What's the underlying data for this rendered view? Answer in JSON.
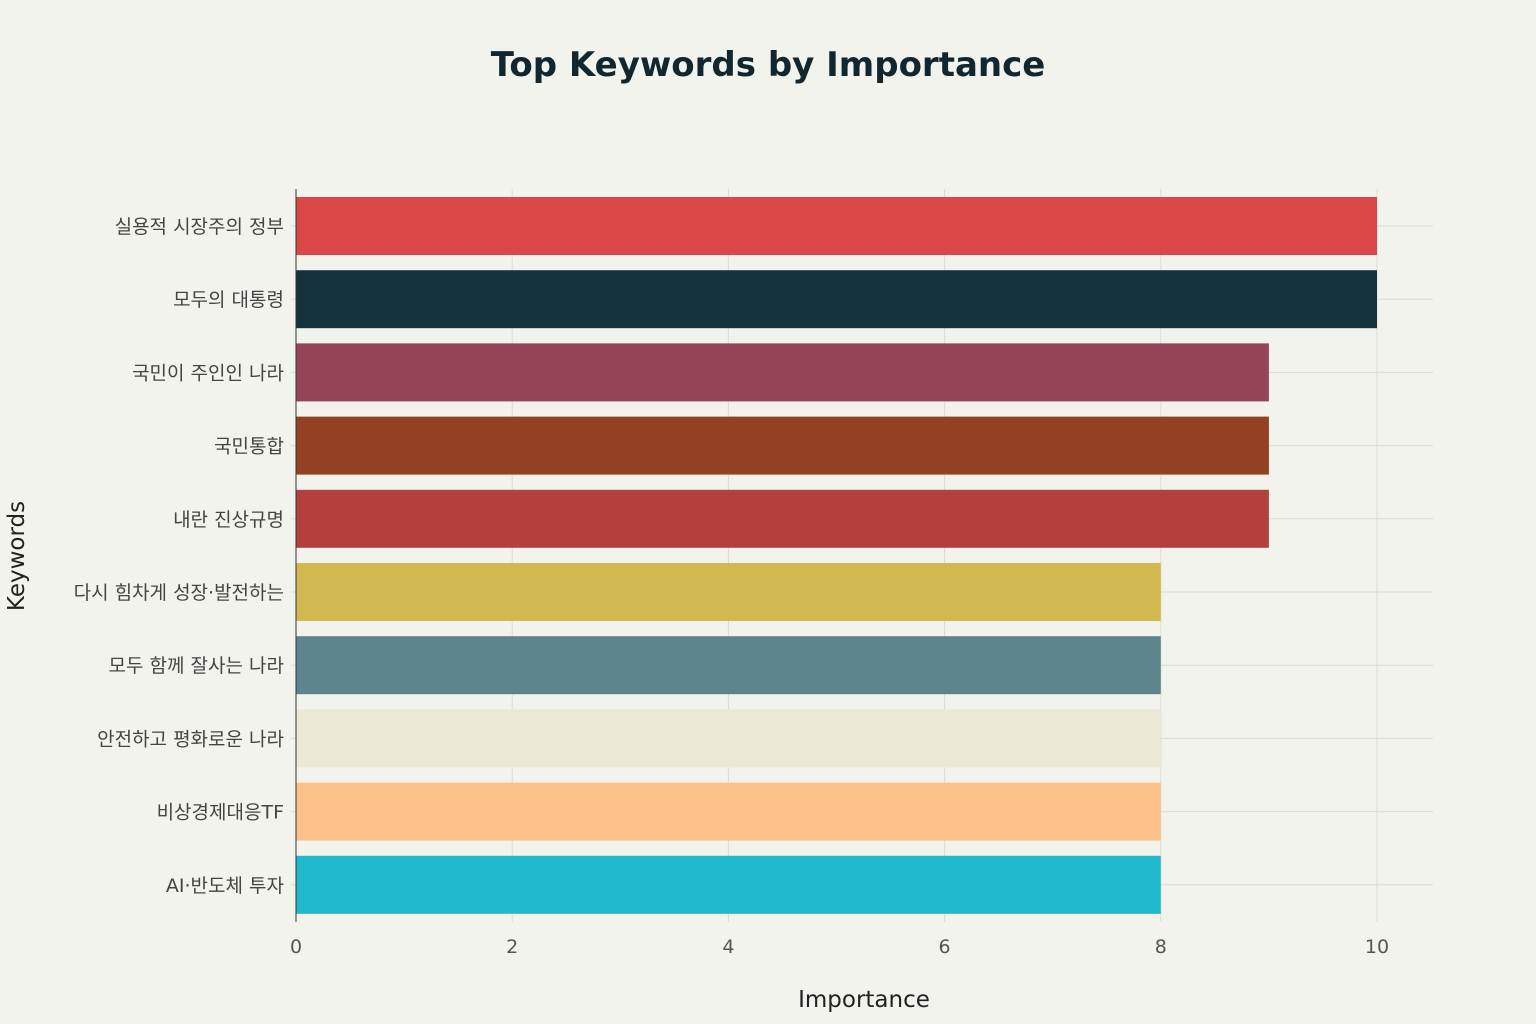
{
  "chart_data": {
    "type": "bar",
    "orientation": "horizontal",
    "title": "Top Keywords by Importance",
    "xlabel": "Importance",
    "ylabel": "Keywords",
    "xlim": [
      0,
      10.5
    ],
    "xticks": [
      0,
      2,
      4,
      6,
      8,
      10
    ],
    "grid": true,
    "legend": "none",
    "categories": [
      "실용적 시장주의 정부",
      "모두의 대통령",
      "국민이 주인인 나라",
      "국민통합",
      "내란 진상규명",
      "다시 힘차게 성장·발전하는",
      "모두 함께 잘사는 나라",
      "안전하고 평화로운 나라",
      "비상경제대응TF",
      "AI·반도체 투자"
    ],
    "values": [
      10,
      10,
      9,
      9,
      9,
      8,
      8,
      8,
      8,
      8
    ],
    "colors": [
      "#db4646",
      "#15333d",
      "#944456",
      "#944123",
      "#b43f3f",
      "#d2b94f",
      "#5e858d",
      "#ebe9d6",
      "#fcc189",
      "#20b8cd"
    ]
  }
}
